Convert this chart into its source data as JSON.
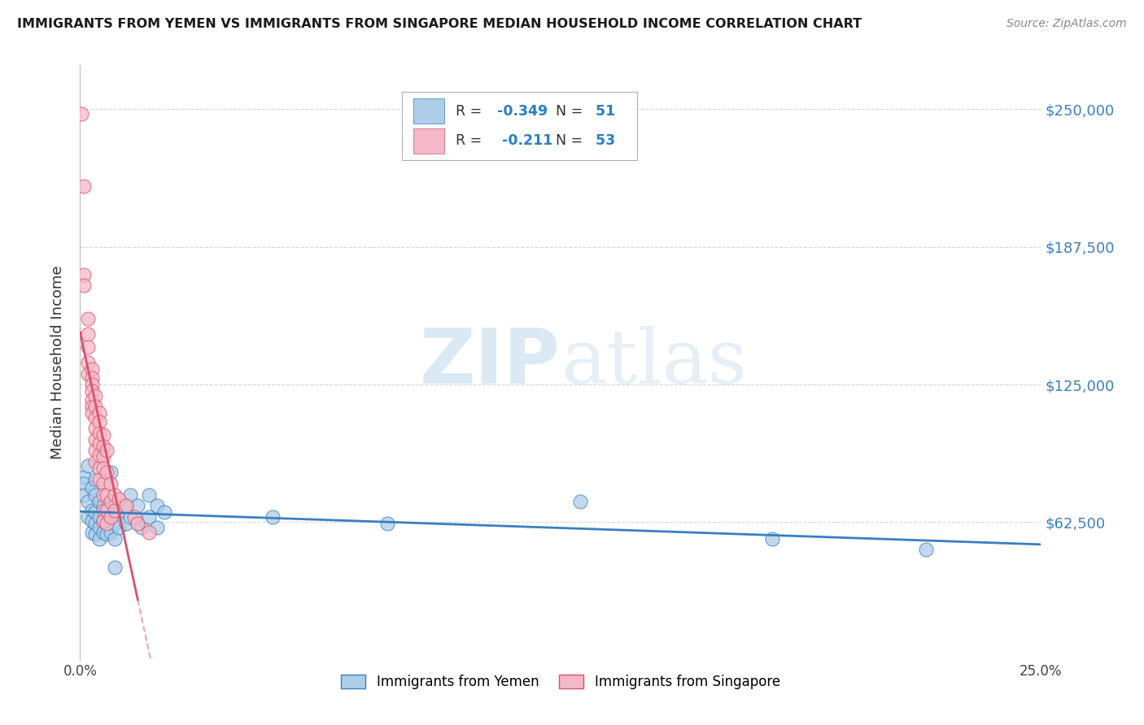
{
  "title": "IMMIGRANTS FROM YEMEN VS IMMIGRANTS FROM SINGAPORE MEDIAN HOUSEHOLD INCOME CORRELATION CHART",
  "source": "Source: ZipAtlas.com",
  "ylabel": "Median Household Income",
  "xlim": [
    0.0,
    0.25
  ],
  "ylim": [
    0,
    270000
  ],
  "yticks": [
    0,
    62500,
    125000,
    187500,
    250000
  ],
  "ytick_labels": [
    "",
    "$62,500",
    "$125,000",
    "$187,500",
    "$250,000"
  ],
  "xticks": [
    0.0,
    0.25
  ],
  "xtick_labels": [
    "0.0%",
    "25.0%"
  ],
  "legend_r_yemen": "-0.349",
  "legend_n_yemen": "51",
  "legend_r_singapore": "-0.211",
  "legend_n_singapore": "53",
  "color_yemen": "#aecde8",
  "color_singapore": "#f5b8c8",
  "line_color_yemen": "#3a7fc1",
  "line_color_singapore": "#d9536a",
  "watermark_zip": "ZIP",
  "watermark_atlas": "atlas",
  "background_color": "#ffffff",
  "yemen_scatter": [
    [
      0.001,
      83000
    ],
    [
      0.001,
      80000
    ],
    [
      0.001,
      75000
    ],
    [
      0.002,
      88000
    ],
    [
      0.002,
      72000
    ],
    [
      0.002,
      65000
    ],
    [
      0.003,
      78000
    ],
    [
      0.003,
      68000
    ],
    [
      0.003,
      63000
    ],
    [
      0.003,
      58000
    ],
    [
      0.004,
      82000
    ],
    [
      0.004,
      75000
    ],
    [
      0.004,
      67000
    ],
    [
      0.004,
      62000
    ],
    [
      0.004,
      57000
    ],
    [
      0.005,
      72000
    ],
    [
      0.005,
      65000
    ],
    [
      0.005,
      60000
    ],
    [
      0.005,
      55000
    ],
    [
      0.006,
      70000
    ],
    [
      0.006,
      63000
    ],
    [
      0.006,
      58000
    ],
    [
      0.007,
      68000
    ],
    [
      0.007,
      62000
    ],
    [
      0.007,
      57000
    ],
    [
      0.008,
      85000
    ],
    [
      0.008,
      65000
    ],
    [
      0.008,
      58000
    ],
    [
      0.009,
      70000
    ],
    [
      0.009,
      62000
    ],
    [
      0.009,
      55000
    ],
    [
      0.009,
      42000
    ],
    [
      0.01,
      68000
    ],
    [
      0.01,
      60000
    ],
    [
      0.012,
      70000
    ],
    [
      0.012,
      62000
    ],
    [
      0.013,
      75000
    ],
    [
      0.013,
      65000
    ],
    [
      0.015,
      70000
    ],
    [
      0.015,
      62000
    ],
    [
      0.016,
      60000
    ],
    [
      0.018,
      75000
    ],
    [
      0.018,
      65000
    ],
    [
      0.02,
      70000
    ],
    [
      0.02,
      60000
    ],
    [
      0.022,
      67000
    ],
    [
      0.05,
      65000
    ],
    [
      0.08,
      62000
    ],
    [
      0.13,
      72000
    ],
    [
      0.18,
      55000
    ],
    [
      0.22,
      50000
    ]
  ],
  "singapore_scatter": [
    [
      0.0003,
      248000
    ],
    [
      0.001,
      215000
    ],
    [
      0.001,
      175000
    ],
    [
      0.001,
      170000
    ],
    [
      0.002,
      155000
    ],
    [
      0.002,
      148000
    ],
    [
      0.002,
      142000
    ],
    [
      0.002,
      135000
    ],
    [
      0.002,
      130000
    ],
    [
      0.003,
      132000
    ],
    [
      0.003,
      128000
    ],
    [
      0.003,
      125000
    ],
    [
      0.003,
      122000
    ],
    [
      0.003,
      118000
    ],
    [
      0.003,
      115000
    ],
    [
      0.003,
      112000
    ],
    [
      0.004,
      120000
    ],
    [
      0.004,
      115000
    ],
    [
      0.004,
      110000
    ],
    [
      0.004,
      105000
    ],
    [
      0.004,
      100000
    ],
    [
      0.004,
      95000
    ],
    [
      0.004,
      90000
    ],
    [
      0.005,
      112000
    ],
    [
      0.005,
      108000
    ],
    [
      0.005,
      103000
    ],
    [
      0.005,
      98000
    ],
    [
      0.005,
      93000
    ],
    [
      0.005,
      87000
    ],
    [
      0.005,
      82000
    ],
    [
      0.006,
      102000
    ],
    [
      0.006,
      97000
    ],
    [
      0.006,
      92000
    ],
    [
      0.006,
      87000
    ],
    [
      0.006,
      80000
    ],
    [
      0.006,
      75000
    ],
    [
      0.006,
      68000
    ],
    [
      0.006,
      63000
    ],
    [
      0.007,
      95000
    ],
    [
      0.007,
      85000
    ],
    [
      0.007,
      75000
    ],
    [
      0.007,
      68000
    ],
    [
      0.007,
      62000
    ],
    [
      0.008,
      80000
    ],
    [
      0.008,
      72000
    ],
    [
      0.008,
      65000
    ],
    [
      0.009,
      75000
    ],
    [
      0.009,
      68000
    ],
    [
      0.01,
      73000
    ],
    [
      0.012,
      70000
    ],
    [
      0.014,
      65000
    ],
    [
      0.015,
      62000
    ],
    [
      0.018,
      58000
    ]
  ]
}
